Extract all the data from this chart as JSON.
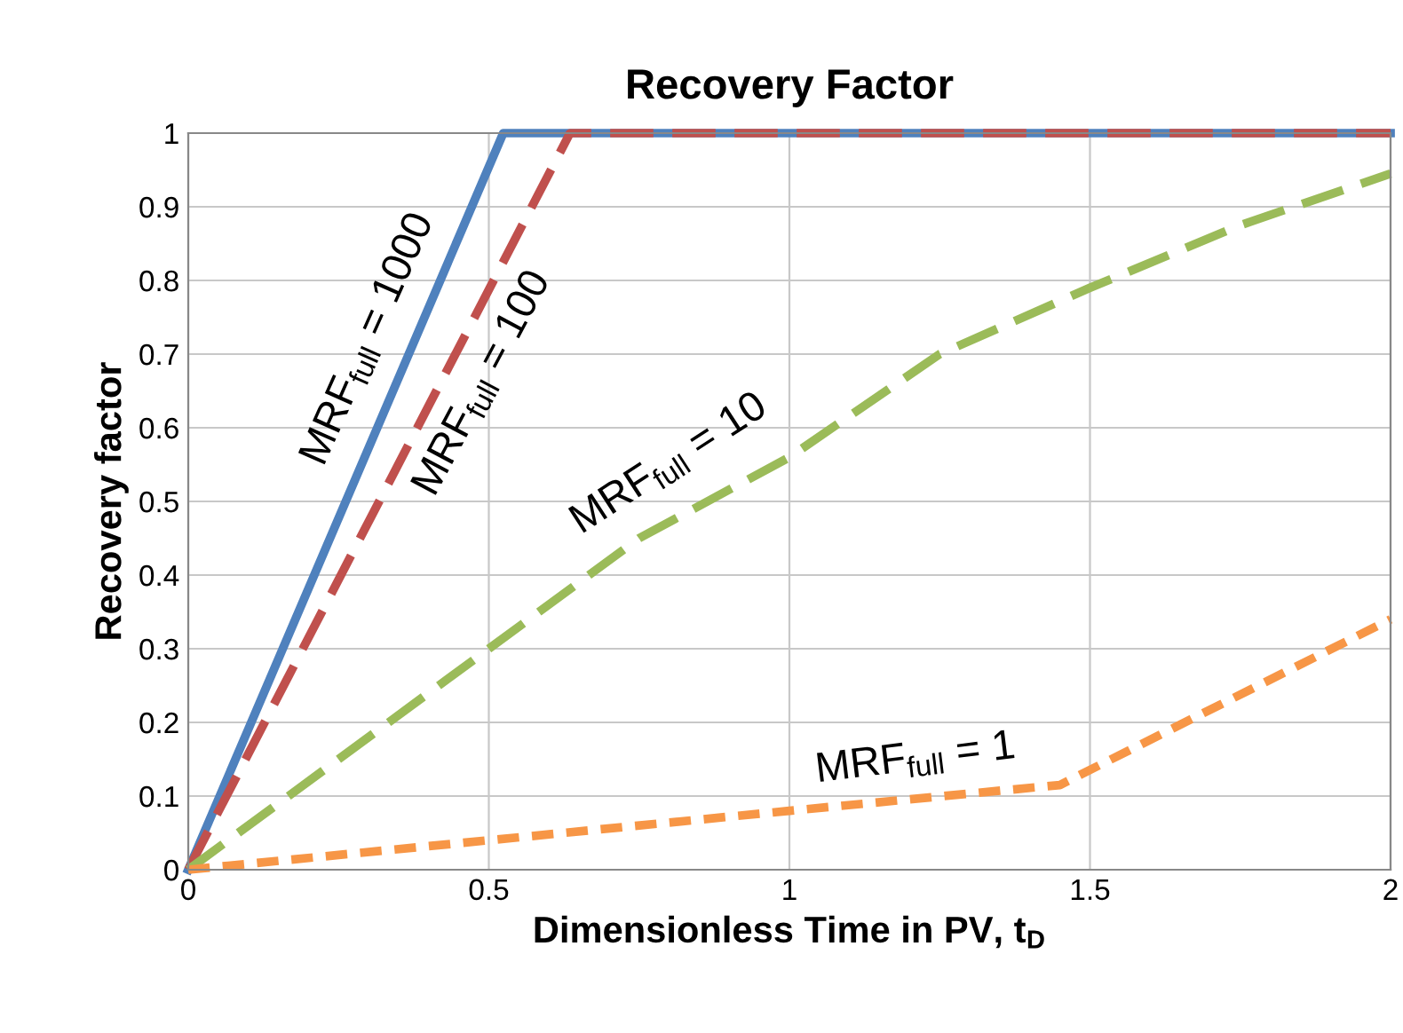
{
  "chart_data": {
    "type": "line",
    "title": "Recovery Factor",
    "xlabel": "Dimensionless Time in PV, t$_{D}$",
    "ylabel": "Recovery factor",
    "xlim": [
      0,
      2
    ],
    "ylim": [
      0,
      1
    ],
    "xticks": [
      0,
      0.5,
      1,
      1.5,
      2
    ],
    "yticks": [
      0,
      0.1,
      0.2,
      0.3,
      0.4,
      0.5,
      0.6,
      0.7,
      0.8,
      0.9,
      1
    ],
    "grid": true,
    "marker": "none",
    "series": [
      {
        "x": [
          0,
          0.524,
          2
        ],
        "values": [
          0,
          1,
          1
        ],
        "color": "#4f81bd",
        "line_style": "solid"
      },
      {
        "x": [
          0,
          0.635,
          2
        ],
        "values": [
          0,
          1,
          1
        ],
        "color": "#c0504d",
        "line_style": "dashed"
      },
      {
        "x": [
          0,
          0.25,
          0.5,
          0.75,
          1,
          1.25,
          1.5,
          1.75,
          2
        ],
        "values": [
          0,
          0.15,
          0.3,
          0.45,
          0.56,
          0.7,
          0.79,
          0.875,
          0.945
        ],
        "color": "#9bbb59",
        "line_style": "dashed"
      },
      {
        "x": [
          0,
          0.5,
          1,
          1.45,
          2
        ],
        "values": [
          0,
          0.04,
          0.08,
          0.115,
          0.34
        ],
        "color": "#f79646",
        "line_style": "dotted"
      }
    ],
    "annotations": [
      "MRF$_{full}$ = 1000",
      "MRF$_{full}$ = 100",
      "MRF$_{full}$ = 10",
      "MRF$_{full}$ = 1"
    ]
  }
}
